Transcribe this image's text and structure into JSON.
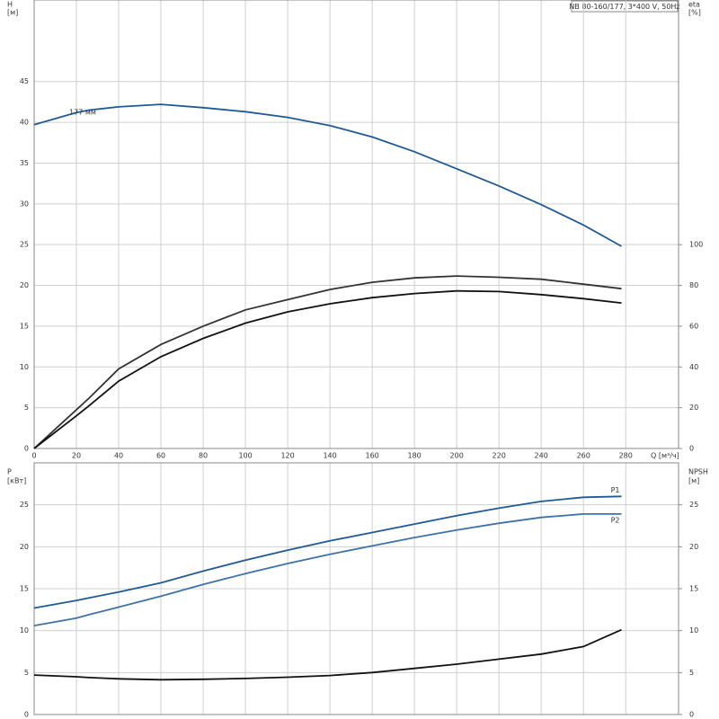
{
  "title": "NB 80-160/177, 3*400 V, 50Hz",
  "chart_data": [
    {
      "type": "line",
      "xlabel": "Q [м³/ч]",
      "ylabel": "H",
      "yunit": "[м]",
      "y2label": "eta",
      "y2unit": "[%]",
      "x": [
        0,
        20,
        26,
        40,
        60,
        80,
        100,
        120,
        140,
        160,
        180,
        200,
        220,
        240,
        260,
        278
      ],
      "xlim": [
        0,
        305
      ],
      "xticks": [
        0,
        20,
        40,
        60,
        80,
        100,
        120,
        140,
        160,
        180,
        200,
        220,
        240,
        260,
        280
      ],
      "ylim": [
        0,
        55
      ],
      "yticks": [
        0,
        5,
        10,
        15,
        20,
        25,
        30,
        35,
        40,
        45
      ],
      "y2lim": [
        0,
        220
      ],
      "y2ticks": [
        0,
        20,
        40,
        60,
        80,
        100
      ],
      "grid": true,
      "series": [
        {
          "name": "177 мм",
          "color": "#1f5a96",
          "values": [
            39.7,
            41.2,
            41.5,
            41.9,
            42.2,
            41.8,
            41.3,
            40.6,
            39.6,
            38.2,
            36.4,
            34.3,
            32.2,
            29.9,
            27.4,
            24.8
          ]
        },
        {
          "color": "#333333",
          "axis": "y2",
          "values": [
            0,
            19,
            24.7,
            39,
            51,
            60,
            68,
            73,
            78,
            81.5,
            83.7,
            84.6,
            84,
            83,
            80.6,
            78.4
          ]
        },
        {
          "color": "#111111",
          "axis": "y2",
          "values": [
            0,
            16,
            21,
            33,
            45,
            54,
            61.5,
            67,
            71,
            74,
            76,
            77.3,
            77,
            75.5,
            73.5,
            71.4
          ]
        }
      ]
    },
    {
      "type": "line",
      "ylabel": "P",
      "yunit": "[кВт]",
      "y2label": "NPSH",
      "y2unit": "[м]",
      "x": [
        0,
        20,
        26,
        40,
        60,
        80,
        100,
        120,
        140,
        160,
        180,
        200,
        220,
        240,
        260,
        278
      ],
      "xlim": [
        0,
        305
      ],
      "ylim": [
        0,
        30
      ],
      "yticks": [
        0,
        5,
        10,
        15,
        20,
        25
      ],
      "y2lim": [
        0,
        30
      ],
      "y2ticks": [
        0,
        5,
        10,
        15,
        20,
        25
      ],
      "grid": true,
      "series": [
        {
          "name": "P1",
          "color": "#1f5a96",
          "values": [
            12.7,
            13.6,
            13.9,
            14.6,
            15.7,
            17.1,
            18.4,
            19.6,
            20.7,
            21.7,
            22.7,
            23.7,
            24.6,
            25.4,
            25.9,
            26.0
          ]
        },
        {
          "name": "P2",
          "color": "#3f72a8",
          "values": [
            10.6,
            11.5,
            11.9,
            12.8,
            14.1,
            15.5,
            16.8,
            18.0,
            19.1,
            20.1,
            21.1,
            22.0,
            22.8,
            23.5,
            23.9,
            23.9
          ]
        },
        {
          "color": "#111111",
          "axis": "y2",
          "values": [
            4.7,
            4.5,
            4.4,
            4.25,
            4.15,
            4.2,
            4.3,
            4.45,
            4.65,
            5.0,
            5.5,
            6.0,
            6.6,
            7.2,
            8.1,
            10.1
          ]
        }
      ]
    }
  ]
}
